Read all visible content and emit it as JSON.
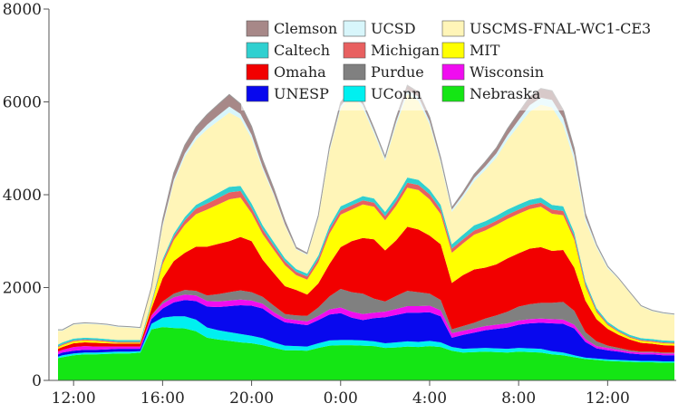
{
  "chart_data": {
    "type": "area",
    "stacked": true,
    "grid": false,
    "legend_position": "top-right",
    "ylim": [
      0,
      8000
    ],
    "yticks": [
      "0",
      "2000",
      "4000",
      "6000",
      "8000"
    ],
    "x_hours": [
      11.3,
      11.5,
      12,
      12.5,
      13,
      13.5,
      14,
      14.5,
      15,
      15.5,
      16,
      16.5,
      17,
      17.5,
      18,
      18.5,
      19,
      19.5,
      20,
      20.5,
      21,
      21.5,
      22,
      22.5,
      23,
      23.5,
      24,
      24.5,
      25,
      25.5,
      26,
      26.5,
      27,
      27.5,
      28,
      28.5,
      29,
      29.5,
      30,
      30.5,
      31,
      31.5,
      32,
      32.5,
      33,
      33.5,
      34,
      34.5,
      35,
      35.5,
      36,
      36.5,
      37,
      37.5,
      38,
      38.5,
      39
    ],
    "xticks": [
      {
        "hour": 12,
        "label": "12:00"
      },
      {
        "hour": 16,
        "label": "16:00"
      },
      {
        "hour": 20,
        "label": "20:00"
      },
      {
        "hour": 24,
        "label": "0:00"
      },
      {
        "hour": 28,
        "label": "4:00"
      },
      {
        "hour": 32,
        "label": "8:00"
      },
      {
        "hour": 36,
        "label": "12:00"
      }
    ],
    "series": [
      {
        "name": "Nebraska",
        "color": "#14e614",
        "values": [
          480,
          500,
          540,
          560,
          560,
          570,
          580,
          580,
          600,
          1100,
          1150,
          1130,
          1120,
          1060,
          920,
          880,
          850,
          820,
          800,
          760,
          700,
          650,
          650,
          640,
          700,
          750,
          760,
          760,
          750,
          740,
          700,
          710,
          730,
          720,
          740,
          720,
          640,
          600,
          610,
          620,
          610,
          600,
          620,
          610,
          600,
          560,
          540,
          500,
          460,
          440,
          420,
          410,
          400,
          390,
          390,
          380,
          380
        ]
      },
      {
        "name": "UConn",
        "color": "#00f0f0",
        "values": [
          30,
          40,
          40,
          40,
          40,
          40,
          40,
          40,
          30,
          120,
          200,
          250,
          260,
          250,
          220,
          200,
          190,
          180,
          160,
          150,
          120,
          100,
          90,
          90,
          100,
          110,
          110,
          110,
          110,
          100,
          100,
          110,
          110,
          110,
          110,
          100,
          80,
          80,
          80,
          80,
          80,
          80,
          80,
          80,
          80,
          70,
          60,
          40,
          30,
          30,
          30,
          30,
          30,
          30,
          30,
          30,
          30
        ]
      },
      {
        "name": "UNESP",
        "color": "#0808ee",
        "values": [
          50,
          60,
          60,
          60,
          60,
          60,
          60,
          60,
          50,
          100,
          200,
          300,
          350,
          400,
          450,
          500,
          560,
          620,
          650,
          640,
          560,
          500,
          480,
          460,
          500,
          560,
          580,
          480,
          440,
          500,
          560,
          590,
          620,
          630,
          620,
          560,
          200,
          300,
          340,
          380,
          420,
          460,
          500,
          540,
          560,
          600,
          620,
          580,
          340,
          220,
          200,
          180,
          150,
          140,
          140,
          130,
          130
        ]
      },
      {
        "name": "Wisconsin",
        "color": "#f00cf0",
        "values": [
          60,
          60,
          80,
          80,
          70,
          60,
          50,
          50,
          50,
          80,
          100,
          110,
          120,
          120,
          120,
          120,
          120,
          120,
          110,
          100,
          90,
          80,
          80,
          80,
          90,
          110,
          120,
          130,
          130,
          120,
          120,
          130,
          140,
          140,
          140,
          130,
          100,
          90,
          90,
          90,
          90,
          90,
          90,
          90,
          90,
          90,
          90,
          80,
          60,
          50,
          50,
          40,
          40,
          40,
          40,
          40,
          40
        ]
      },
      {
        "name": "Purdue",
        "color": "#808080",
        "values": [
          0,
          0,
          0,
          0,
          0,
          0,
          0,
          0,
          0,
          0,
          50,
          80,
          100,
          100,
          120,
          160,
          180,
          200,
          180,
          150,
          140,
          100,
          100,
          120,
          180,
          280,
          400,
          420,
          440,
          300,
          220,
          280,
          330,
          300,
          260,
          220,
          80,
          100,
          120,
          160,
          200,
          250,
          300,
          320,
          340,
          350,
          380,
          300,
          150,
          100,
          50,
          40,
          30,
          20,
          20,
          20,
          20
        ]
      },
      {
        "name": "Omaha",
        "color": "#f20000",
        "values": [
          60,
          60,
          80,
          80,
          80,
          70,
          60,
          60,
          60,
          150,
          500,
          700,
          800,
          950,
          1050,
          1080,
          1100,
          1150,
          1100,
          800,
          700,
          600,
          550,
          460,
          520,
          700,
          900,
          1100,
          1200,
          1280,
          1100,
          1200,
          1380,
          1350,
          1250,
          1200,
          1000,
          1100,
          1150,
          1100,
          1100,
          1150,
          1150,
          1200,
          1200,
          1120,
          1120,
          930,
          680,
          480,
          360,
          280,
          230,
          190,
          170,
          160,
          150
        ]
      },
      {
        "name": "MIT",
        "color": "#ffff00",
        "values": [
          30,
          40,
          40,
          40,
          40,
          30,
          20,
          20,
          20,
          80,
          300,
          450,
          600,
          700,
          800,
          850,
          900,
          850,
          600,
          550,
          500,
          450,
          320,
          320,
          450,
          650,
          700,
          680,
          720,
          700,
          650,
          740,
          840,
          850,
          780,
          650,
          650,
          680,
          750,
          800,
          850,
          850,
          850,
          850,
          870,
          800,
          750,
          600,
          300,
          150,
          80,
          60,
          40,
          40,
          40,
          40,
          40
        ]
      },
      {
        "name": "Michigan",
        "color": "#e86060",
        "values": [
          20,
          20,
          20,
          20,
          20,
          20,
          20,
          20,
          20,
          20,
          60,
          80,
          100,
          120,
          130,
          140,
          150,
          140,
          110,
          100,
          90,
          80,
          70,
          70,
          80,
          90,
          90,
          90,
          90,
          90,
          90,
          100,
          110,
          110,
          110,
          100,
          90,
          90,
          90,
          90,
          90,
          90,
          90,
          90,
          90,
          90,
          90,
          80,
          60,
          40,
          30,
          20,
          20,
          20,
          20,
          20,
          20
        ]
      },
      {
        "name": "Caltech",
        "color": "#30d0d0",
        "values": [
          40,
          40,
          40,
          40,
          40,
          40,
          40,
          40,
          40,
          40,
          50,
          60,
          70,
          80,
          100,
          110,
          120,
          110,
          100,
          90,
          80,
          70,
          60,
          60,
          70,
          80,
          90,
          90,
          90,
          90,
          90,
          100,
          110,
          110,
          100,
          100,
          90,
          100,
          110,
          110,
          110,
          110,
          110,
          110,
          110,
          100,
          100,
          80,
          60,
          50,
          40,
          40,
          40,
          40,
          40,
          40,
          40
        ]
      },
      {
        "name": "USCMS-FNAL-WC1-CE3",
        "color": "#fff5b8",
        "values": [
          300,
          250,
          300,
          300,
          300,
          300,
          280,
          270,
          250,
          300,
          700,
          1100,
          1300,
          1400,
          1500,
          1550,
          1600,
          1450,
          1400,
          1200,
          1000,
          700,
          420,
          400,
          800,
          1600,
          2100,
          2300,
          1900,
          1400,
          1100,
          1550,
          1800,
          1700,
          1400,
          900,
          700,
          800,
          950,
          1100,
          1250,
          1500,
          1700,
          1900,
          2000,
          2100,
          1750,
          1550,
          1300,
          1300,
          1150,
          1080,
          900,
          680,
          600,
          580,
          560
        ]
      },
      {
        "name": "UCSD",
        "color": "#d8f6fb",
        "values": [
          20,
          20,
          20,
          20,
          20,
          20,
          20,
          20,
          20,
          20,
          50,
          60,
          70,
          80,
          100,
          120,
          130,
          100,
          80,
          60,
          40,
          30,
          20,
          20,
          30,
          50,
          60,
          60,
          70,
          60,
          50,
          70,
          90,
          90,
          70,
          50,
          50,
          60,
          70,
          80,
          90,
          100,
          120,
          140,
          150,
          160,
          150,
          120,
          80,
          40,
          30,
          20,
          20,
          20,
          20,
          20,
          20
        ]
      },
      {
        "name": "Clemson",
        "color": "#a78888",
        "values": [
          0,
          0,
          0,
          0,
          0,
          0,
          0,
          0,
          0,
          0,
          100,
          150,
          180,
          200,
          220,
          240,
          260,
          220,
          180,
          150,
          110,
          80,
          30,
          20,
          40,
          60,
          80,
          70,
          60,
          50,
          40,
          80,
          100,
          100,
          90,
          60,
          40,
          60,
          80,
          100,
          120,
          140,
          160,
          180,
          200,
          200,
          180,
          140,
          80,
          30,
          20,
          0,
          0,
          0,
          0,
          0,
          0
        ]
      }
    ],
    "legend_order": [
      "Clemson",
      "UCSD",
      "USCMS-FNAL-WC1-CE3",
      "Caltech",
      "Michigan",
      "MIT",
      "Omaha",
      "Purdue",
      "Wisconsin",
      "UNESP",
      "UConn",
      "Nebraska"
    ]
  }
}
